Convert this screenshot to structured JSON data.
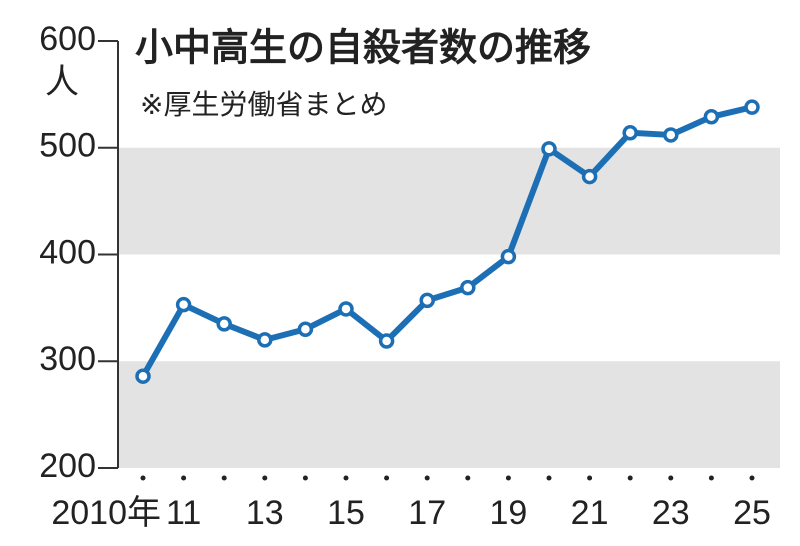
{
  "chart_data": {
    "type": "line",
    "title": "小中高生の自殺者数の推移",
    "subtitle": "※厚生労働省まとめ",
    "y_unit": "人",
    "categories": [
      "2010年",
      "11",
      null,
      "13",
      null,
      "15",
      null,
      "17",
      null,
      "19",
      null,
      "21",
      null,
      "23",
      null,
      "25"
    ],
    "series": [
      {
        "color": "#1c6fb5",
        "values": [
          286,
          353,
          335,
          320,
          330,
          349,
          319,
          357,
          369,
          398,
          499,
          473,
          514,
          512,
          529,
          538
        ]
      }
    ],
    "ylim": [
      200,
      600
    ],
    "yticks": [
      200,
      300,
      400,
      500,
      600
    ],
    "bands": true
  }
}
